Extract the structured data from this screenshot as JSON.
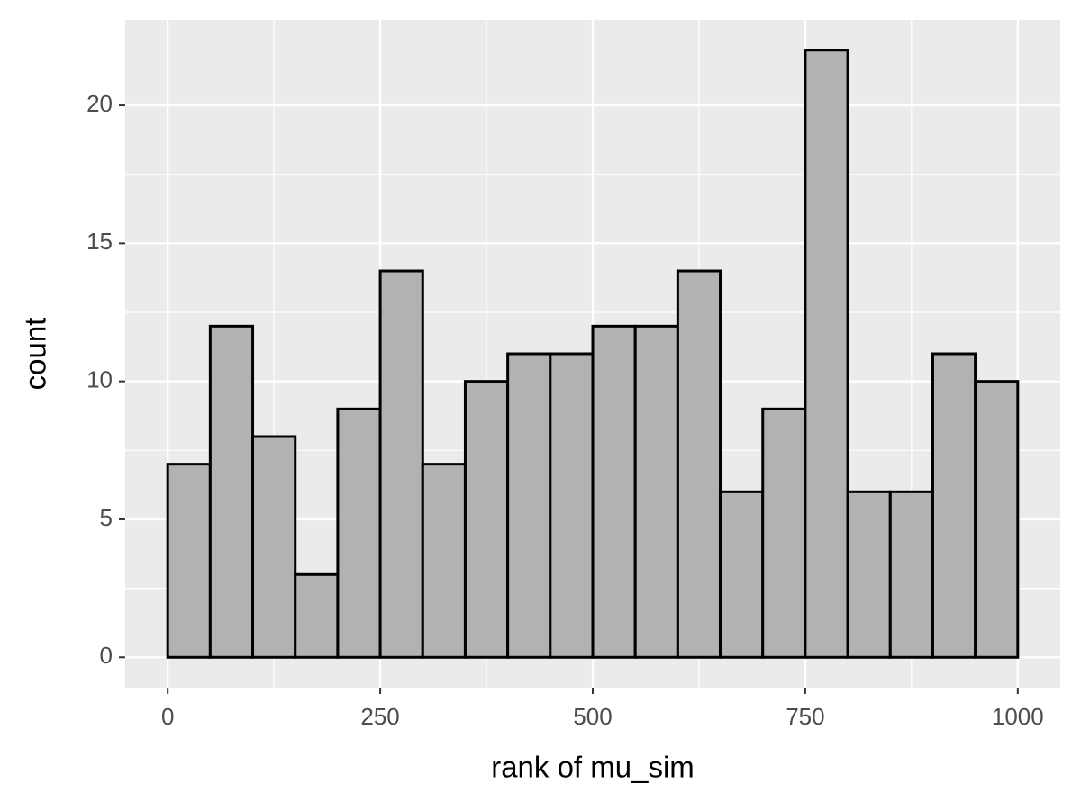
{
  "chart_data": {
    "type": "histogram",
    "x_label": "rank of mu_sim",
    "y_label": "count",
    "bins": [
      0,
      50,
      100,
      150,
      200,
      250,
      300,
      350,
      400,
      450,
      500,
      550,
      600,
      650,
      700,
      750,
      800,
      850,
      900,
      950,
      1000
    ],
    "values": [
      7,
      12,
      8,
      3,
      9,
      14,
      7,
      10,
      11,
      11,
      12,
      12,
      14,
      6,
      9,
      22,
      6,
      6,
      11,
      10
    ],
    "color": "#b2b2b2",
    "edge_color": "#000000",
    "xlim": [
      -50,
      1050
    ],
    "ylim": [
      -1.1,
      23.1
    ],
    "xticks": [
      0,
      250,
      500,
      750,
      1000
    ],
    "yticks": [
      0,
      5,
      10,
      15,
      20
    ],
    "grid": true
  }
}
